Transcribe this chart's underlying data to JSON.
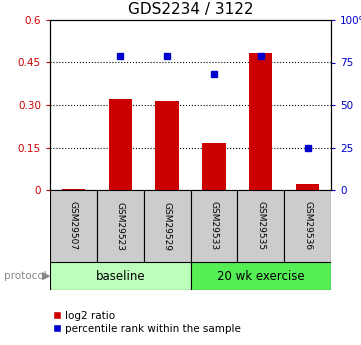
{
  "title": "GDS2234 / 3122",
  "samples": [
    "GSM29507",
    "GSM29523",
    "GSM29529",
    "GSM29533",
    "GSM29535",
    "GSM29536"
  ],
  "log2_ratio": [
    0.003,
    0.322,
    0.315,
    0.165,
    0.485,
    0.02
  ],
  "percentile_rank": [
    null,
    79.0,
    79.0,
    68.0,
    79.0,
    25.0
  ],
  "n_baseline": 3,
  "n_exercise": 3,
  "ylim_left": [
    0,
    0.6
  ],
  "ylim_right": [
    0,
    100
  ],
  "yticks_left": [
    0,
    0.15,
    0.3,
    0.45,
    0.6
  ],
  "yticks_right": [
    0,
    25,
    50,
    75,
    100
  ],
  "ytick_labels_left": [
    "0",
    "0.15",
    "0.30",
    "0.45",
    "0.6"
  ],
  "ytick_labels_right": [
    "0",
    "25",
    "50",
    "75",
    "100%"
  ],
  "bar_color": "#cc0000",
  "dot_color": "#0000cc",
  "baseline_color": "#bbffbb",
  "exercise_color": "#55ee55",
  "sample_box_color": "#cccccc",
  "background_color": "#ffffff",
  "title_fontsize": 11,
  "legend_bar_label": "log2 ratio",
  "legend_dot_label": "percentile rank within the sample",
  "protocol_label": "protocol",
  "baseline_label": "baseline",
  "exercise_label": "20 wk exercise"
}
